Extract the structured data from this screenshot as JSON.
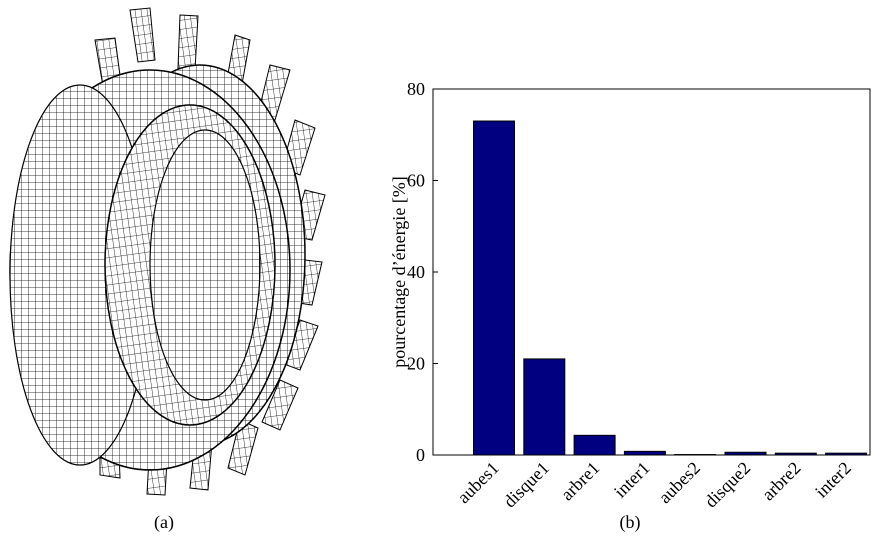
{
  "captions": [
    "(a)",
    "(b)"
  ],
  "chart_data": {
    "type": "bar",
    "ylabel": "pourcentage d’énergie [%]",
    "categories": [
      "aubes1",
      "disque1",
      "arbre1",
      "inter1",
      "aubes2",
      "disque2",
      "arbre2",
      "inter2"
    ],
    "values": [
      73,
      21,
      4.3,
      0.8,
      0.1,
      0.6,
      0.4,
      0.4
    ],
    "color": "#000080",
    "ylim": [
      0,
      80
    ],
    "yticks": [
      0,
      20,
      40,
      60,
      80
    ]
  }
}
